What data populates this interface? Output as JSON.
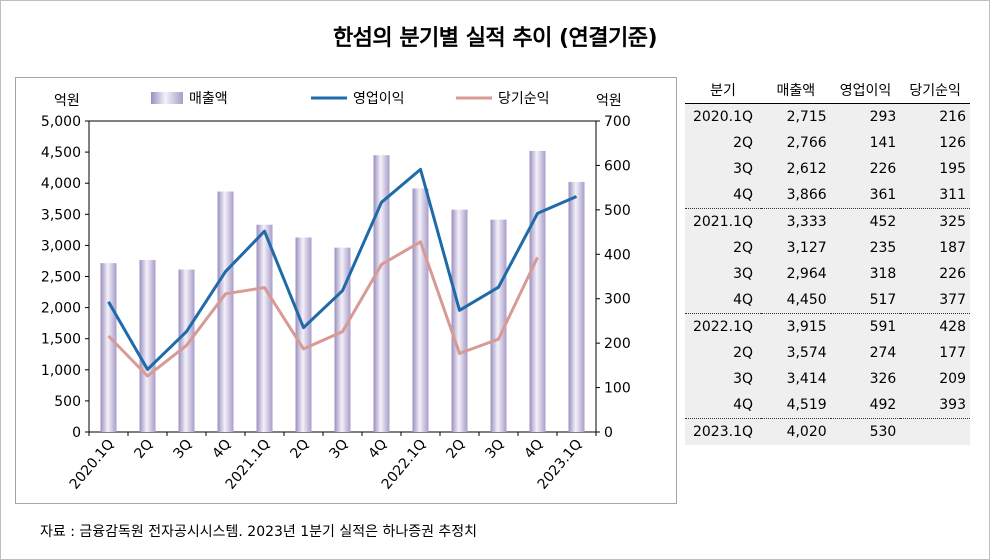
{
  "title": "한섬의 분기별 실적 추이 (연결기준)",
  "source": "자료 : 금융감독원 전자공시시스템. 2023년 1분기 실적은 하나증권 추정치",
  "chart_data": {
    "type": "bar+line",
    "left_axis_label": "억원",
    "right_axis_label": "억원",
    "categories": [
      "2020.1Q",
      "2Q",
      "3Q",
      "4Q",
      "2021.1Q",
      "2Q",
      "3Q",
      "4Q",
      "2022.1Q",
      "2Q",
      "3Q",
      "4Q",
      "2023.1Q"
    ],
    "y_left": {
      "min": 0,
      "max": 5000,
      "ticks": [
        "0",
        "500",
        "1,000",
        "1,500",
        "2,000",
        "2,500",
        "3,000",
        "3,500",
        "4,000",
        "4,500",
        "5,000"
      ]
    },
    "y_right": {
      "min": 0,
      "max": 700,
      "ticks": [
        "0",
        "100",
        "200",
        "300",
        "400",
        "500",
        "600",
        "700"
      ]
    },
    "series": [
      {
        "name": "매출액",
        "type": "bar",
        "axis": "left",
        "color": "#c7bfdc",
        "values": [
          2715,
          2766,
          2612,
          3866,
          3333,
          3127,
          2964,
          4450,
          3915,
          3574,
          3414,
          4519,
          4020
        ]
      },
      {
        "name": "영업이익",
        "type": "line",
        "axis": "right",
        "color": "#1f6aa8",
        "values": [
          293,
          141,
          226,
          361,
          452,
          235,
          318,
          517,
          591,
          274,
          326,
          492,
          530
        ]
      },
      {
        "name": "당기순익",
        "type": "line",
        "axis": "right",
        "color": "#d79a94",
        "values": [
          216,
          126,
          195,
          311,
          325,
          187,
          226,
          377,
          428,
          177,
          209,
          393,
          null
        ]
      }
    ],
    "legend_position": "top",
    "grid": false
  },
  "table": {
    "headers": [
      "분기",
      "매출액",
      "영업이익",
      "당기순익"
    ],
    "rows": [
      [
        "2020.1Q",
        "2,715",
        "293",
        "216"
      ],
      [
        "2Q",
        "2,766",
        "141",
        "126"
      ],
      [
        "3Q",
        "2,612",
        "226",
        "195"
      ],
      [
        "4Q",
        "3,866",
        "361",
        "311"
      ],
      [
        "2021.1Q",
        "3,333",
        "452",
        "325"
      ],
      [
        "2Q",
        "3,127",
        "235",
        "187"
      ],
      [
        "3Q",
        "2,964",
        "318",
        "226"
      ],
      [
        "4Q",
        "4,450",
        "517",
        "377"
      ],
      [
        "2022.1Q",
        "3,915",
        "591",
        "428"
      ],
      [
        "2Q",
        "3,574",
        "274",
        "177"
      ],
      [
        "3Q",
        "3,414",
        "326",
        "209"
      ],
      [
        "4Q",
        "4,519",
        "492",
        "393"
      ],
      [
        "2023.1Q",
        "4,020",
        "530",
        ""
      ]
    ]
  }
}
